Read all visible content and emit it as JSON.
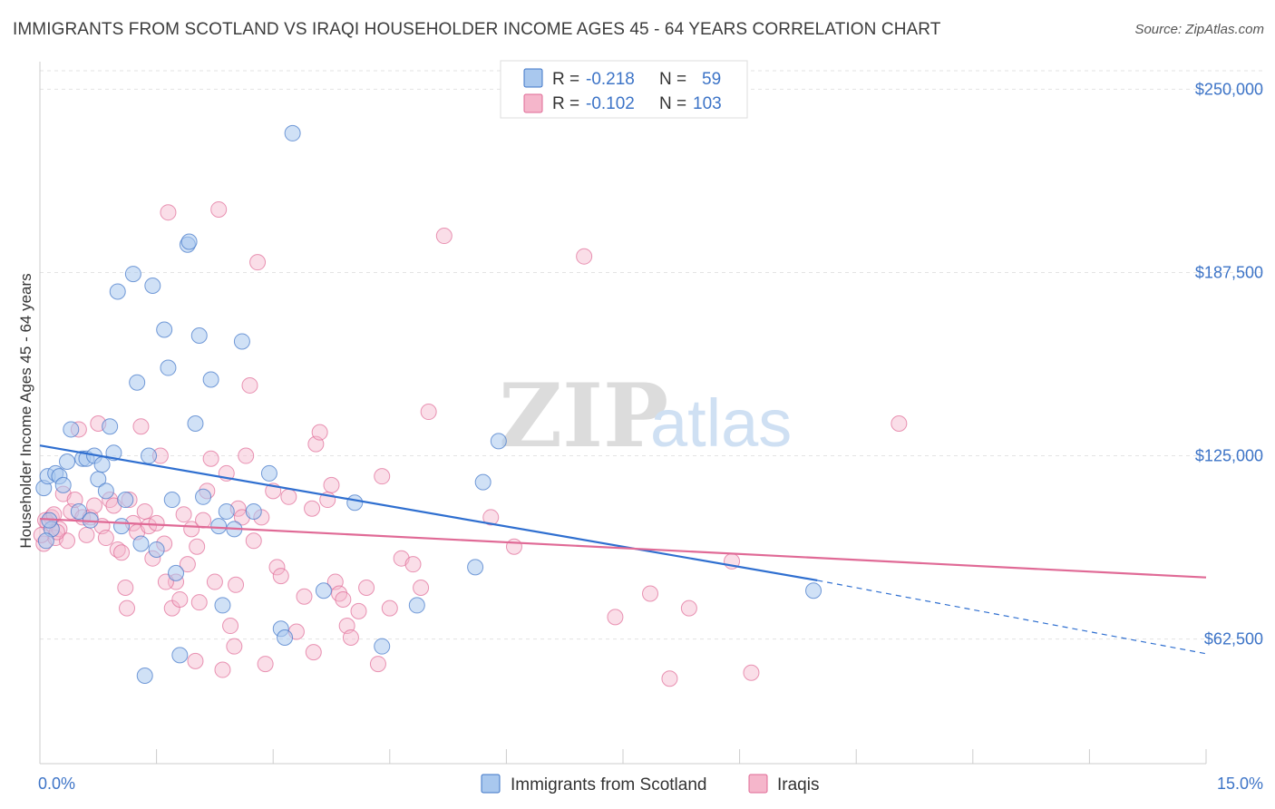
{
  "title": "IMMIGRANTS FROM SCOTLAND VS IRAQI HOUSEHOLDER INCOME AGES 45 - 64 YEARS CORRELATION CHART",
  "source": "Source: ZipAtlas.com",
  "watermark": {
    "zip": "ZIP",
    "atlas": "atlas"
  },
  "colors": {
    "blue": "#3d74c7",
    "blue_fill": "#a9c8ee",
    "blue_line": "#2f6fd0",
    "pink_fill": "#f5b6cb",
    "pink_line": "#e06a96",
    "grid": "#e3e3e3"
  },
  "legend": {
    "r_label": "R =",
    "n_label": "N =",
    "entries": [
      {
        "r": "-0.218",
        "n": "59"
      },
      {
        "r": "-0.102",
        "n": "103"
      }
    ]
  },
  "bottom_legend": [
    "Immigrants from Scotland",
    "Iraqis"
  ],
  "chart_data": {
    "type": "scatter",
    "xlabel": "",
    "ylabel": "Householder Income Ages 45 - 64 years",
    "xlim": [
      0,
      15
    ],
    "ylim": [
      20000,
      262500
    ],
    "x_tick_labels": [
      "0.0%",
      "15.0%"
    ],
    "y_ticks": [
      62500,
      125000,
      187500,
      250000
    ],
    "y_tick_labels": [
      "$62,500",
      "$125,000",
      "$187,500",
      "$250,000"
    ],
    "grid": true,
    "series": [
      {
        "name": "Immigrants from Scotland",
        "color": "#a9c8ee",
        "trend": {
          "x": [
            0,
            10.0
          ],
          "y": [
            128500,
            82500
          ],
          "dashed_to": [
            15,
            57500
          ]
        },
        "points": [
          [
            0.05,
            114000
          ],
          [
            0.1,
            118000
          ],
          [
            0.15,
            100000
          ],
          [
            0.2,
            119000
          ],
          [
            0.25,
            118000
          ],
          [
            0.3,
            115000
          ],
          [
            0.35,
            123000
          ],
          [
            0.4,
            134000
          ],
          [
            0.5,
            106000
          ],
          [
            0.55,
            124000
          ],
          [
            0.6,
            124000
          ],
          [
            0.65,
            103000
          ],
          [
            0.7,
            125000
          ],
          [
            0.75,
            117000
          ],
          [
            0.8,
            122000
          ],
          [
            0.85,
            113000
          ],
          [
            0.9,
            135000
          ],
          [
            0.95,
            126000
          ],
          [
            1.0,
            181000
          ],
          [
            1.05,
            101000
          ],
          [
            1.1,
            110000
          ],
          [
            1.2,
            187000
          ],
          [
            1.25,
            150000
          ],
          [
            1.3,
            95000
          ],
          [
            1.35,
            50000
          ],
          [
            1.4,
            125000
          ],
          [
            1.45,
            183000
          ],
          [
            1.5,
            93000
          ],
          [
            1.6,
            168000
          ],
          [
            1.65,
            155000
          ],
          [
            1.7,
            110000
          ],
          [
            1.75,
            85000
          ],
          [
            1.8,
            57000
          ],
          [
            1.9,
            197000
          ],
          [
            1.92,
            198000
          ],
          [
            2.0,
            136000
          ],
          [
            2.05,
            166000
          ],
          [
            2.1,
            111000
          ],
          [
            2.2,
            151000
          ],
          [
            2.3,
            101000
          ],
          [
            2.35,
            74000
          ],
          [
            2.4,
            106000
          ],
          [
            2.5,
            100000
          ],
          [
            2.6,
            164000
          ],
          [
            2.75,
            106000
          ],
          [
            2.95,
            119000
          ],
          [
            3.1,
            66000
          ],
          [
            3.15,
            63000
          ],
          [
            3.25,
            235000
          ],
          [
            3.65,
            79000
          ],
          [
            4.05,
            109000
          ],
          [
            4.4,
            60000
          ],
          [
            4.85,
            74000
          ],
          [
            5.6,
            87000
          ],
          [
            5.7,
            116000
          ],
          [
            5.9,
            130000
          ],
          [
            9.95,
            79000
          ],
          [
            0.08,
            96000
          ],
          [
            0.12,
            103000
          ]
        ]
      },
      {
        "name": "Iraqis",
        "color": "#f5b6cb",
        "trend": {
          "x": [
            0,
            15
          ],
          "y": [
            103500,
            83500
          ]
        },
        "points": [
          [
            0.05,
            95000
          ],
          [
            0.1,
            102000
          ],
          [
            0.15,
            104000
          ],
          [
            0.2,
            97000
          ],
          [
            0.25,
            100000
          ],
          [
            0.3,
            112000
          ],
          [
            0.35,
            96000
          ],
          [
            0.4,
            106000
          ],
          [
            0.45,
            110000
          ],
          [
            0.5,
            134000
          ],
          [
            0.55,
            104000
          ],
          [
            0.6,
            98000
          ],
          [
            0.65,
            104000
          ],
          [
            0.7,
            108000
          ],
          [
            0.75,
            136000
          ],
          [
            0.8,
            101000
          ],
          [
            0.85,
            97000
          ],
          [
            0.9,
            110000
          ],
          [
            0.95,
            108000
          ],
          [
            1.0,
            93000
          ],
          [
            1.05,
            92000
          ],
          [
            1.1,
            80000
          ],
          [
            1.15,
            110000
          ],
          [
            1.2,
            102000
          ],
          [
            1.25,
            99000
          ],
          [
            1.3,
            135000
          ],
          [
            1.35,
            106000
          ],
          [
            1.4,
            101000
          ],
          [
            1.45,
            90000
          ],
          [
            1.5,
            102000
          ],
          [
            1.55,
            125000
          ],
          [
            1.6,
            95000
          ],
          [
            1.65,
            208000
          ],
          [
            1.7,
            73000
          ],
          [
            1.75,
            82000
          ],
          [
            1.8,
            76000
          ],
          [
            1.85,
            105000
          ],
          [
            1.9,
            88000
          ],
          [
            1.95,
            100000
          ],
          [
            2.0,
            55000
          ],
          [
            2.05,
            75000
          ],
          [
            2.1,
            103000
          ],
          [
            2.15,
            113000
          ],
          [
            2.2,
            124000
          ],
          [
            2.25,
            82000
          ],
          [
            2.3,
            209000
          ],
          [
            2.35,
            52000
          ],
          [
            2.4,
            119000
          ],
          [
            2.45,
            67000
          ],
          [
            2.5,
            60000
          ],
          [
            2.55,
            107000
          ],
          [
            2.6,
            104000
          ],
          [
            2.65,
            125000
          ],
          [
            2.7,
            149000
          ],
          [
            2.75,
            96000
          ],
          [
            2.8,
            191000
          ],
          [
            2.85,
            104000
          ],
          [
            2.9,
            54000
          ],
          [
            3.0,
            113000
          ],
          [
            3.05,
            87000
          ],
          [
            3.1,
            84000
          ],
          [
            3.2,
            111000
          ],
          [
            3.3,
            65000
          ],
          [
            3.4,
            77000
          ],
          [
            3.5,
            107000
          ],
          [
            3.55,
            129000
          ],
          [
            3.6,
            133000
          ],
          [
            3.7,
            110000
          ],
          [
            3.75,
            115000
          ],
          [
            3.8,
            82000
          ],
          [
            3.85,
            78000
          ],
          [
            3.9,
            76000
          ],
          [
            3.95,
            67000
          ],
          [
            4.0,
            63000
          ],
          [
            4.2,
            80000
          ],
          [
            4.35,
            54000
          ],
          [
            4.4,
            118000
          ],
          [
            4.5,
            73000
          ],
          [
            4.65,
            90000
          ],
          [
            4.8,
            88000
          ],
          [
            4.9,
            80000
          ],
          [
            5.0,
            140000
          ],
          [
            5.2,
            200000
          ],
          [
            5.8,
            104000
          ],
          [
            6.1,
            94000
          ],
          [
            7.0,
            193000
          ],
          [
            7.4,
            70000
          ],
          [
            7.85,
            78000
          ],
          [
            8.1,
            49000
          ],
          [
            8.35,
            73000
          ],
          [
            8.9,
            89000
          ],
          [
            9.15,
            51000
          ],
          [
            11.05,
            136000
          ],
          [
            0.02,
            98000
          ],
          [
            0.07,
            103000
          ],
          [
            0.18,
            105000
          ],
          [
            0.22,
            99000
          ],
          [
            1.12,
            73000
          ],
          [
            1.62,
            82000
          ],
          [
            2.02,
            94000
          ],
          [
            2.52,
            81000
          ],
          [
            3.52,
            58000
          ],
          [
            4.1,
            72000
          ]
        ]
      }
    ]
  }
}
